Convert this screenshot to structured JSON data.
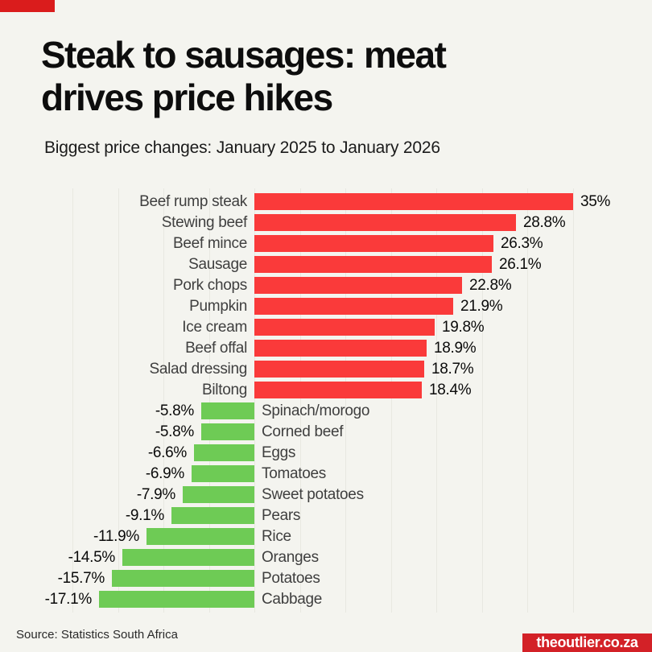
{
  "page": {
    "background_color": "#f4f4ef",
    "accent_red": "#da1c1c"
  },
  "header": {
    "title_line1": "Steak to sausages: meat",
    "title_line2": "drives price hikes",
    "subtitle": "Biggest price changes: January 2025 to January 2026"
  },
  "chart_data": {
    "type": "bar",
    "orientation": "horizontal",
    "title": "Steak to sausages: meat drives price hikes",
    "subtitle": "Biggest price changes: January 2025 to January 2026",
    "xlabel": "",
    "ylabel": "",
    "xlim": [
      -20,
      35
    ],
    "gridline_step": 5,
    "grid": true,
    "legend": "none",
    "positive_color": "#fa3a3a",
    "negative_color": "#6ecb55",
    "items": [
      {
        "label": "Beef rump steak",
        "value": 35,
        "value_label": "35%"
      },
      {
        "label": "Stewing beef",
        "value": 28.8,
        "value_label": "28.8%"
      },
      {
        "label": "Beef mince",
        "value": 26.3,
        "value_label": "26.3%"
      },
      {
        "label": "Sausage",
        "value": 26.1,
        "value_label": "26.1%"
      },
      {
        "label": "Pork chops",
        "value": 22.8,
        "value_label": "22.8%"
      },
      {
        "label": "Pumpkin",
        "value": 21.9,
        "value_label": "21.9%"
      },
      {
        "label": "Ice cream",
        "value": 19.8,
        "value_label": "19.8%"
      },
      {
        "label": "Beef offal",
        "value": 18.9,
        "value_label": "18.9%"
      },
      {
        "label": "Salad dressing",
        "value": 18.7,
        "value_label": "18.7%"
      },
      {
        "label": "Biltong",
        "value": 18.4,
        "value_label": "18.4%"
      },
      {
        "label": "Spinach/morogo",
        "value": -5.8,
        "value_label": "-5.8%"
      },
      {
        "label": "Corned beef",
        "value": -5.8,
        "value_label": "-5.8%"
      },
      {
        "label": "Eggs",
        "value": -6.6,
        "value_label": "-6.6%"
      },
      {
        "label": "Tomatoes",
        "value": -6.9,
        "value_label": "-6.9%"
      },
      {
        "label": "Sweet potatoes",
        "value": -7.9,
        "value_label": "-7.9%"
      },
      {
        "label": "Pears",
        "value": -9.1,
        "value_label": "-9.1%"
      },
      {
        "label": "Rice",
        "value": -11.9,
        "value_label": "-11.9%"
      },
      {
        "label": "Oranges",
        "value": -14.5,
        "value_label": "-14.5%"
      },
      {
        "label": "Potatoes",
        "value": -15.7,
        "value_label": "-15.7%"
      },
      {
        "label": "Cabbage",
        "value": -17.1,
        "value_label": "-17.1%"
      }
    ]
  },
  "footer": {
    "source": "Source: Statistics South Africa",
    "badge_label": "theoutlier.co.za",
    "badge_color": "#d32127"
  }
}
